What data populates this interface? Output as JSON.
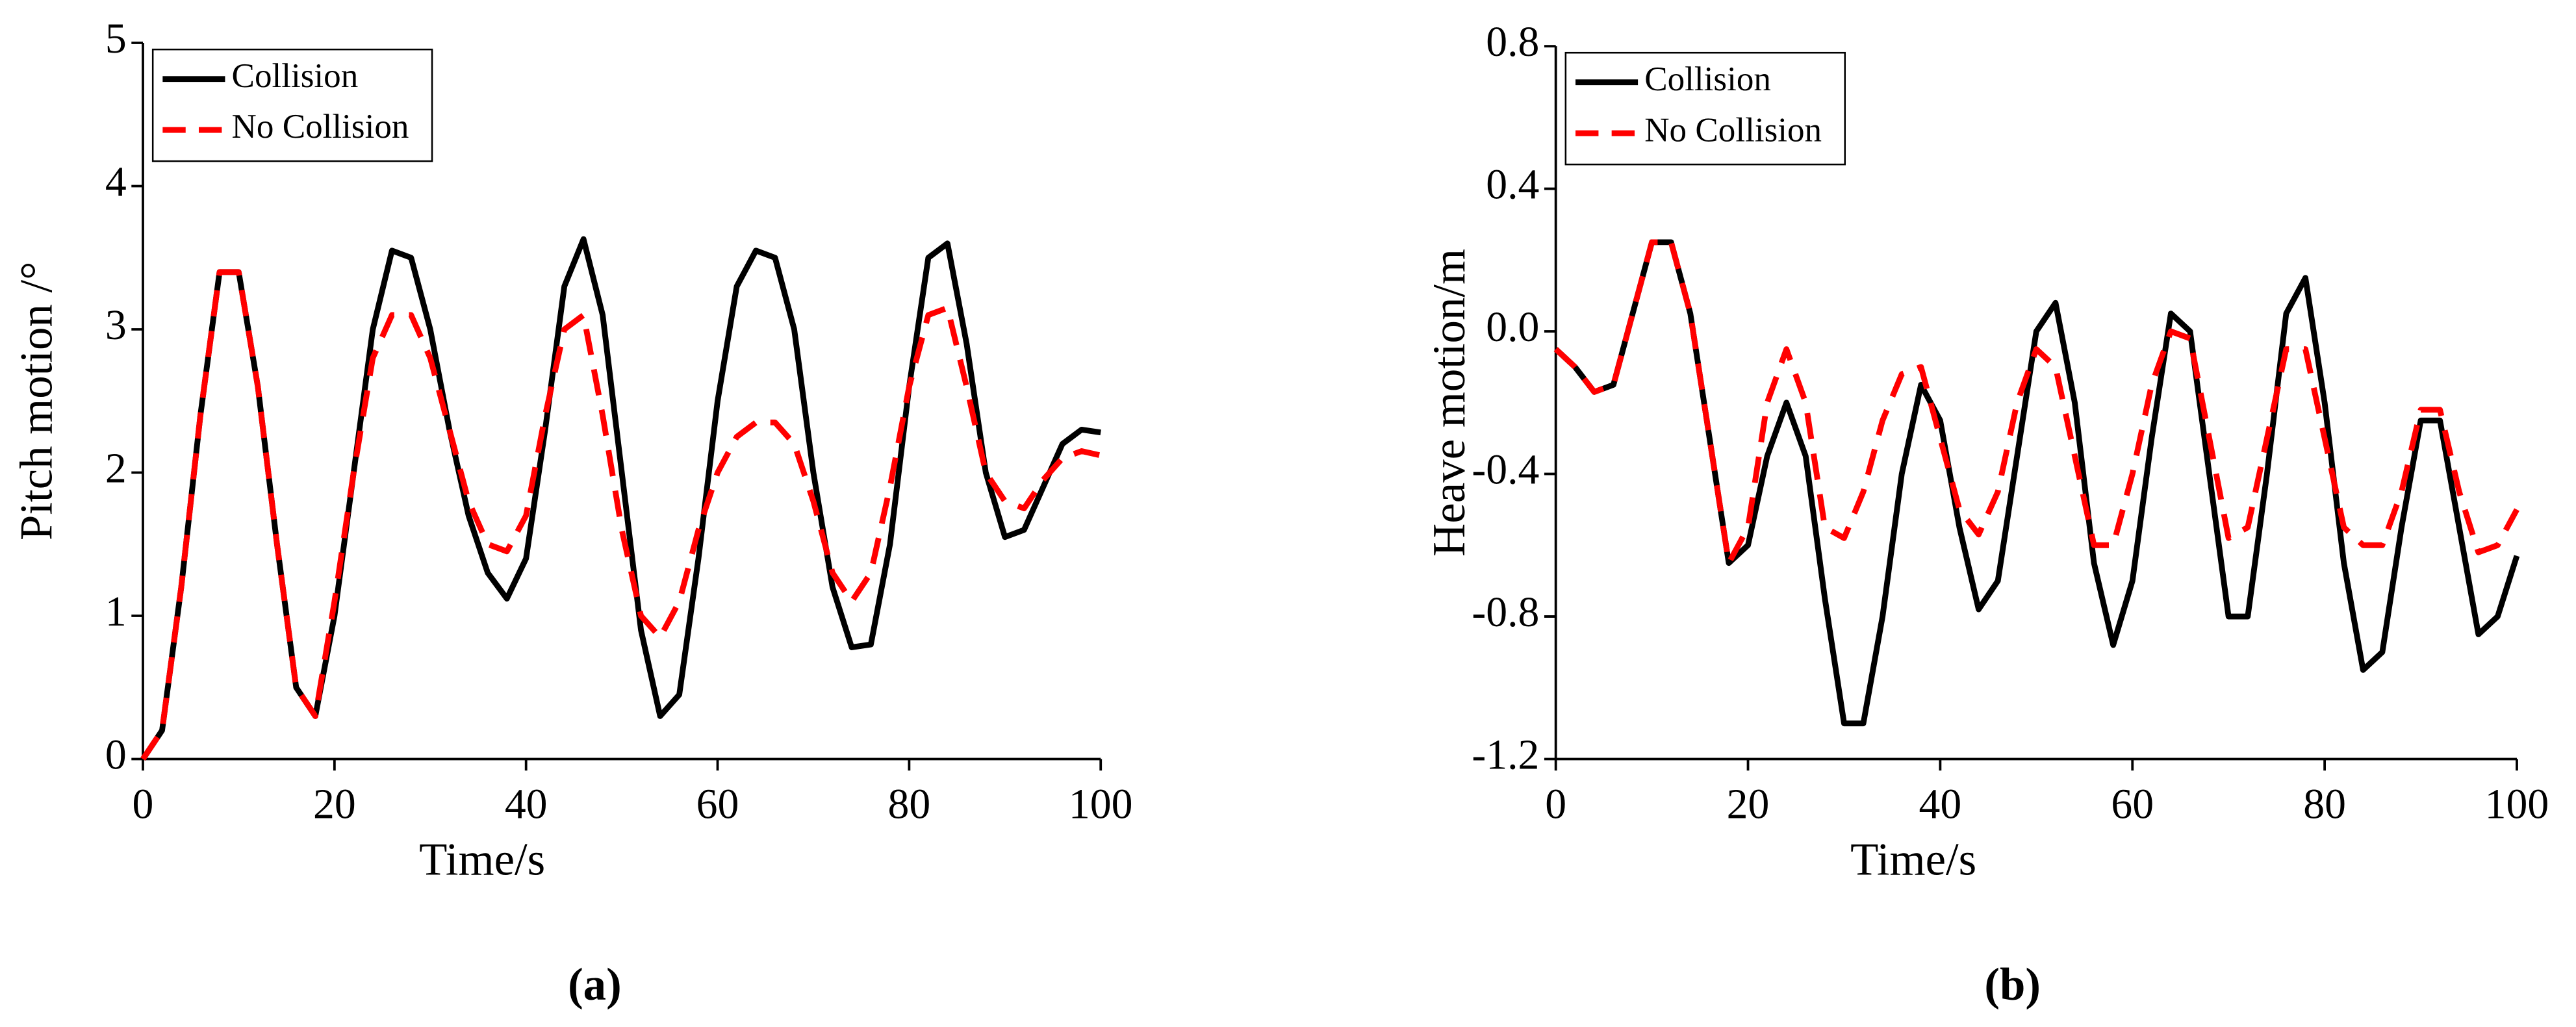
{
  "chart_data": [
    {
      "type": "line",
      "caption": "(a)",
      "xlabel": "Time/s",
      "ylabel": "Pitch motion /°",
      "x": [
        0,
        2,
        4,
        6,
        8,
        10,
        12,
        14,
        16,
        18,
        20,
        22,
        24,
        26,
        28,
        30,
        32,
        34,
        36,
        38,
        40,
        42,
        44,
        46,
        48,
        50,
        52,
        54,
        56,
        58,
        60,
        62,
        64,
        66,
        68,
        70,
        72,
        74,
        76,
        78,
        80,
        82,
        84,
        86,
        88,
        90,
        92,
        94,
        96,
        98,
        100
      ],
      "series": [
        {
          "name": "Collision",
          "color": "#000000",
          "line_style": "solid",
          "values": [
            0,
            0.2,
            1.2,
            2.4,
            3.4,
            3.4,
            2.6,
            1.5,
            0.5,
            0.3,
            1.0,
            2.0,
            3.0,
            3.55,
            3.5,
            3.0,
            2.3,
            1.7,
            1.3,
            1.12,
            1.4,
            2.3,
            3.3,
            3.63,
            3.1,
            2.0,
            0.9,
            0.3,
            0.45,
            1.4,
            2.5,
            3.3,
            3.55,
            3.5,
            3.0,
            2.0,
            1.2,
            0.78,
            0.8,
            1.5,
            2.6,
            3.5,
            3.6,
            2.9,
            2.0,
            1.55,
            1.6,
            1.9,
            2.2,
            2.3,
            2.28
          ]
        },
        {
          "name": "No Collision",
          "color": "#ff0000",
          "line_style": "dashed",
          "values": [
            0,
            0.2,
            1.2,
            2.4,
            3.4,
            3.4,
            2.6,
            1.5,
            0.5,
            0.3,
            1.1,
            2.0,
            2.8,
            3.1,
            3.1,
            2.8,
            2.3,
            1.8,
            1.5,
            1.45,
            1.7,
            2.4,
            3.0,
            3.1,
            2.4,
            1.6,
            1.0,
            0.85,
            1.1,
            1.6,
            2.0,
            2.25,
            2.35,
            2.35,
            2.2,
            1.8,
            1.3,
            1.1,
            1.3,
            1.9,
            2.6,
            3.1,
            3.15,
            2.6,
            2.0,
            1.8,
            1.75,
            1.95,
            2.1,
            2.15,
            2.12
          ]
        }
      ],
      "xlim": [
        0,
        100
      ],
      "xticks": [
        0,
        20,
        40,
        60,
        80,
        100
      ],
      "ylim": [
        0,
        5
      ],
      "yticks": [
        0,
        1,
        2,
        3,
        4,
        5
      ],
      "legend": "upper left"
    },
    {
      "type": "line",
      "caption": "(b)",
      "xlabel": "Time/s",
      "ylabel": "Heave motion/m",
      "x": [
        0,
        2,
        4,
        6,
        8,
        10,
        12,
        14,
        16,
        18,
        20,
        22,
        24,
        26,
        28,
        30,
        32,
        34,
        36,
        38,
        40,
        42,
        44,
        46,
        48,
        50,
        52,
        54,
        56,
        58,
        60,
        62,
        64,
        66,
        68,
        70,
        72,
        74,
        76,
        78,
        80,
        82,
        84,
        86,
        88,
        90,
        92,
        94,
        96,
        98,
        100
      ],
      "series": [
        {
          "name": "Collision",
          "color": "#000000",
          "line_style": "solid",
          "values": [
            -0.05,
            -0.1,
            -0.17,
            -0.15,
            0.05,
            0.25,
            0.25,
            0.05,
            -0.3,
            -0.65,
            -0.6,
            -0.35,
            -0.2,
            -0.35,
            -0.75,
            -1.1,
            -1.1,
            -0.8,
            -0.4,
            -0.15,
            -0.25,
            -0.55,
            -0.78,
            -0.7,
            -0.35,
            0.0,
            0.08,
            -0.2,
            -0.65,
            -0.88,
            -0.7,
            -0.3,
            0.05,
            0.0,
            -0.4,
            -0.8,
            -0.8,
            -0.4,
            0.05,
            0.15,
            -0.2,
            -0.65,
            -0.95,
            -0.9,
            -0.55,
            -0.25,
            -0.25,
            -0.55,
            -0.85,
            -0.8,
            -0.63
          ]
        },
        {
          "name": "No Collision",
          "color": "#ff0000",
          "line_style": "dashed",
          "values": [
            -0.05,
            -0.1,
            -0.17,
            -0.15,
            0.05,
            0.25,
            0.25,
            0.05,
            -0.3,
            -0.65,
            -0.55,
            -0.2,
            -0.05,
            -0.2,
            -0.55,
            -0.58,
            -0.45,
            -0.25,
            -0.12,
            -0.1,
            -0.3,
            -0.5,
            -0.57,
            -0.45,
            -0.2,
            -0.05,
            -0.1,
            -0.35,
            -0.6,
            -0.6,
            -0.4,
            -0.15,
            0.0,
            -0.02,
            -0.3,
            -0.58,
            -0.55,
            -0.3,
            -0.05,
            -0.05,
            -0.3,
            -0.55,
            -0.6,
            -0.6,
            -0.45,
            -0.22,
            -0.22,
            -0.45,
            -0.62,
            -0.6,
            -0.5
          ]
        }
      ],
      "xlim": [
        0,
        100
      ],
      "xticks": [
        0,
        20,
        40,
        60,
        80,
        100
      ],
      "ylim": [
        -1.2,
        0.8
      ],
      "yticks": [
        -1.2,
        -0.8,
        -0.4,
        {
          "value": 0,
          "label": "0.0"
        },
        0.4,
        0.8
      ],
      "legend": "upper left"
    }
  ]
}
